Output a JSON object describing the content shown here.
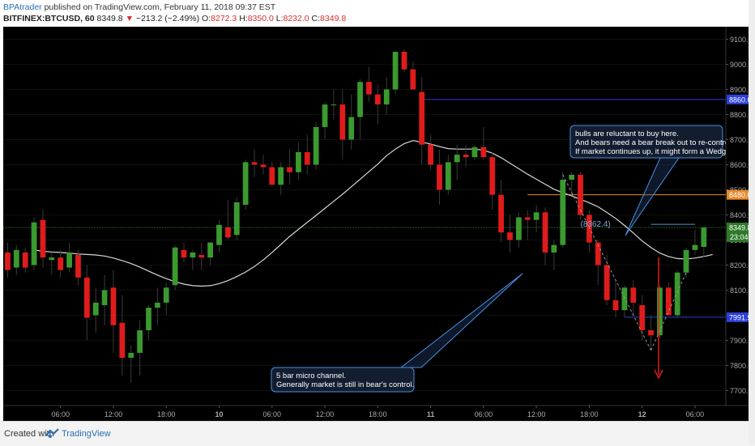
{
  "header": {
    "author": "BPAtrader",
    "published_text": "published on TradingView.com, February 11, 2018 09:37 EST",
    "symbol": "BITFINEX:BTCUSD, 60",
    "last": "8349.8",
    "change_arrow": "▼",
    "change": "−213.2 (−2.49%)",
    "o_label": "O:",
    "o_value": "8272.3",
    "h_label": "H:",
    "h_value": "8350.0",
    "l_label": "L:",
    "l_value": "8232.0",
    "c_label": "C:",
    "c_value": "8349.8"
  },
  "footer": {
    "created_label": "Created with",
    "brand": "TradingView"
  },
  "colors": {
    "background": "#000000",
    "up": "#3a9a2f",
    "down": "#e01b1b",
    "ma": "#d8d8d8",
    "blue_line": "#2b3fd6",
    "orange_line": "#e68a2e",
    "current_line": "#2f7a2a",
    "axis_text": "#aaaaaa",
    "callout_border": "#4a90e2"
  },
  "chart_data": {
    "type": "candlestick",
    "y_axis_ticks": [
      "9100.0",
      "9000.0",
      "8900.0",
      "8800.0",
      "8700.0",
      "8600.0",
      "8500.0",
      "8400.0",
      "8300.0",
      "8200.0",
      "8100.0",
      "8000.0",
      "7900.0",
      "7800.0",
      "7700.0"
    ],
    "y_axis_values": [
      9100,
      9000,
      8900,
      8800,
      8700,
      8600,
      8500,
      8400,
      8300,
      8200,
      8100,
      8000,
      7900,
      7800,
      7700
    ],
    "ylim": [
      7640,
      9150
    ],
    "x_axis_ticks": [
      {
        "label": "06:00",
        "bar": 6
      },
      {
        "label": "12:00",
        "bar": 12
      },
      {
        "label": "18:00",
        "bar": 18
      },
      {
        "label": "10",
        "bar": 24
      },
      {
        "label": "06:00",
        "bar": 30
      },
      {
        "label": "12:00",
        "bar": 36
      },
      {
        "label": "18:00",
        "bar": 42
      },
      {
        "label": "11",
        "bar": 48
      },
      {
        "label": "06:00",
        "bar": 54
      },
      {
        "label": "12:00",
        "bar": 60
      },
      {
        "label": "18:00",
        "bar": 66
      },
      {
        "label": "12",
        "bar": 72
      },
      {
        "label": "06:00",
        "bar": 78
      }
    ],
    "bars_total_slots": 82,
    "candles": [
      [
        8250,
        8290,
        8150,
        8180
      ],
      [
        8190,
        8280,
        8160,
        8260
      ],
      [
        8250,
        8270,
        8170,
        8190
      ],
      [
        8200,
        8390,
        8180,
        8370
      ],
      [
        8380,
        8420,
        8190,
        8230
      ],
      [
        8220,
        8250,
        8160,
        8230
      ],
      [
        8230,
        8260,
        8150,
        8180
      ],
      [
        8190,
        8290,
        8170,
        8250
      ],
      [
        8240,
        8260,
        8120,
        8150
      ],
      [
        8150,
        8200,
        7900,
        7990
      ],
      [
        8000,
        8110,
        7930,
        8050
      ],
      [
        8040,
        8160,
        7960,
        8100
      ],
      [
        8110,
        8180,
        7850,
        7960
      ],
      [
        7970,
        8080,
        7760,
        7830
      ],
      [
        7830,
        7880,
        7730,
        7850
      ],
      [
        7850,
        7980,
        7760,
        7940
      ],
      [
        7940,
        8040,
        7900,
        8030
      ],
      [
        8030,
        8110,
        7960,
        8050
      ],
      [
        8050,
        8130,
        8000,
        8110
      ],
      [
        8120,
        8280,
        8100,
        8270
      ],
      [
        8260,
        8290,
        8210,
        8230
      ],
      [
        8230,
        8260,
        8180,
        8250
      ],
      [
        8240,
        8290,
        8180,
        8230
      ],
      [
        8230,
        8290,
        8200,
        8290
      ],
      [
        8280,
        8380,
        8250,
        8360
      ],
      [
        8350,
        8460,
        8300,
        8310
      ],
      [
        8320,
        8470,
        8300,
        8450
      ],
      [
        8440,
        8620,
        8420,
        8610
      ],
      [
        8610,
        8660,
        8550,
        8600
      ],
      [
        8600,
        8640,
        8560,
        8590
      ],
      [
        8590,
        8610,
        8520,
        8520
      ],
      [
        8520,
        8610,
        8480,
        8590
      ],
      [
        8590,
        8660,
        8520,
        8570
      ],
      [
        8570,
        8690,
        8540,
        8650
      ],
      [
        8650,
        8720,
        8560,
        8600
      ],
      [
        8600,
        8770,
        8580,
        8750
      ],
      [
        8750,
        8850,
        8700,
        8840
      ],
      [
        8840,
        8900,
        8780,
        8840
      ],
      [
        8840,
        8900,
        8620,
        8700
      ],
      [
        8700,
        8880,
        8660,
        8790
      ],
      [
        8790,
        8940,
        8700,
        8930
      ],
      [
        8930,
        8990,
        8850,
        8880
      ],
      [
        8880,
        8920,
        8760,
        8840
      ],
      [
        8840,
        8950,
        8800,
        8900
      ],
      [
        8900,
        9050,
        8880,
        9050
      ],
      [
        9050,
        9060,
        8970,
        8980
      ],
      [
        8980,
        9010,
        8910,
        8900
      ],
      [
        8890,
        8950,
        8600,
        8680
      ],
      [
        8680,
        8720,
        8580,
        8600
      ],
      [
        8600,
        8660,
        8440,
        8500
      ],
      [
        8500,
        8640,
        8480,
        8610
      ],
      [
        8610,
        8680,
        8540,
        8640
      ],
      [
        8640,
        8680,
        8590,
        8630
      ],
      [
        8630,
        8680,
        8620,
        8670
      ],
      [
        8670,
        8750,
        8620,
        8630
      ],
      [
        8630,
        8650,
        8420,
        8480
      ],
      [
        8480,
        8540,
        8290,
        8330
      ],
      [
        8330,
        8400,
        8250,
        8300
      ],
      [
        8300,
        8410,
        8270,
        8390
      ],
      [
        8390,
        8420,
        8300,
        8380
      ],
      [
        8380,
        8440,
        8330,
        8410
      ],
      [
        8410,
        8430,
        8200,
        8250
      ],
      [
        8250,
        8300,
        8180,
        8280
      ],
      [
        8280,
        8570,
        8270,
        8540
      ],
      [
        8540,
        8570,
        8480,
        8560
      ],
      [
        8560,
        8570,
        8380,
        8400
      ],
      [
        8400,
        8420,
        8250,
        8290
      ],
      [
        8290,
        8300,
        8120,
        8200
      ],
      [
        8200,
        8240,
        8040,
        8060
      ],
      [
        8060,
        8140,
        7990,
        8020
      ],
      [
        8020,
        8120,
        7990,
        8110
      ],
      [
        8110,
        8140,
        8000,
        8050
      ],
      [
        8040,
        8080,
        7900,
        7940
      ],
      [
        7940,
        8000,
        7860,
        7920
      ],
      [
        7920,
        8120,
        7910,
        8110
      ],
      [
        8110,
        8130,
        8000,
        8000
      ],
      [
        8000,
        8180,
        7990,
        8170
      ],
      [
        8170,
        8270,
        8150,
        8260
      ],
      [
        8260,
        8340,
        8240,
        8280
      ],
      [
        8272.3,
        8350,
        8232,
        8349.8
      ]
    ],
    "moving_average": [
      8260,
      8255,
      8252,
      8250,
      8248,
      8244,
      8242,
      8240,
      8236,
      8228,
      8218,
      8206,
      8192,
      8176,
      8160,
      8146,
      8134,
      8124,
      8118,
      8116,
      8118,
      8126,
      8138,
      8154,
      8172,
      8194,
      8220,
      8250,
      8282,
      8314,
      8342,
      8370,
      8398,
      8426,
      8454,
      8482,
      8512,
      8542,
      8572,
      8602,
      8636,
      8662,
      8684,
      8696,
      8690,
      8682,
      8672,
      8664,
      8662,
      8662,
      8662,
      8658,
      8646,
      8628,
      8606,
      8584,
      8562,
      8542,
      8522,
      8502,
      8488,
      8476,
      8462,
      8448,
      8432,
      8410,
      8386,
      8358,
      8328,
      8296,
      8270,
      8248,
      8234,
      8226,
      8224,
      8228,
      8234,
      8242
    ],
    "horizontal_lines": [
      {
        "price": 8860.0,
        "label": "8860.0",
        "color": "#2b3fd6"
      },
      {
        "price": 8480.0,
        "label": "8480.0",
        "color": "#e68a2e"
      },
      {
        "price": 7991.9,
        "label": "7991.9",
        "color": "#2b3fd6"
      }
    ],
    "current_price": {
      "label": "8349.8",
      "countdown": "23:04"
    },
    "annotations": {
      "price_note": "(8362.4)",
      "callout_top_line1": "bulls are reluctant to buy here.",
      "callout_top_line2": "And bears need a bear break out to re-control the market.",
      "callout_top_line3": "If market continues up, it might form a Wedge top.",
      "callout_bottom_line1": "5 bar micro channel.",
      "callout_bottom_line2": "Generally market is still in bear's control."
    }
  }
}
